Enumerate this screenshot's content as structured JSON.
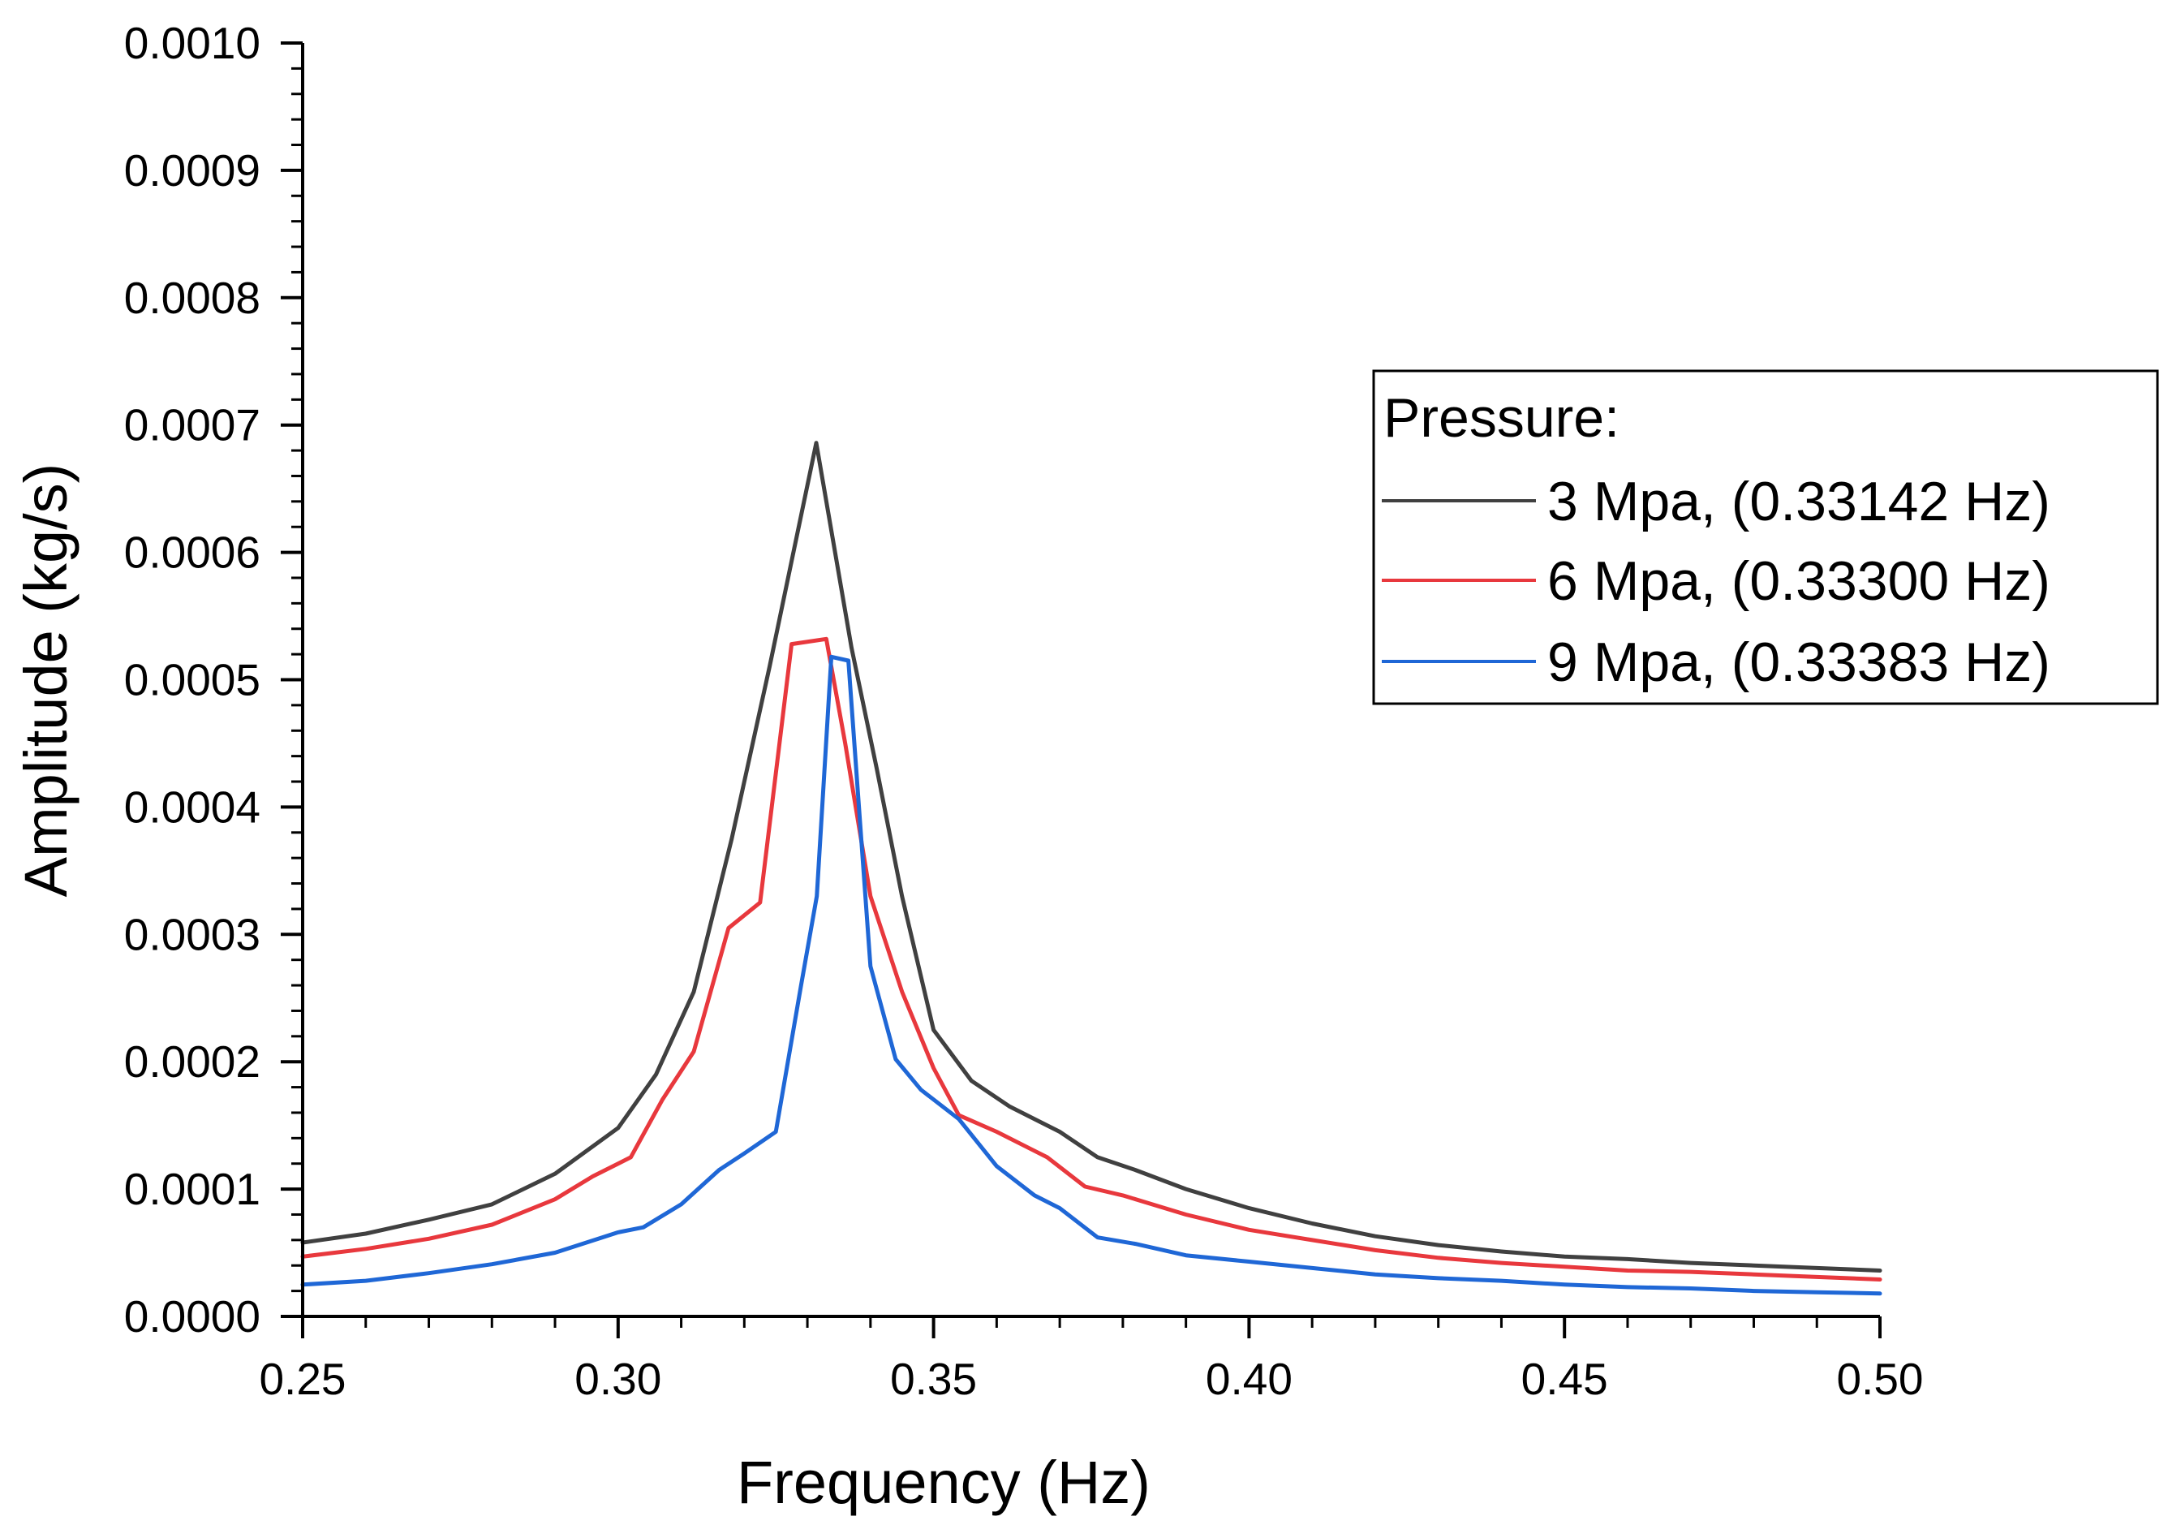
{
  "chart_data": {
    "type": "line",
    "title": "",
    "xlabel": "Frequency (Hz)",
    "ylabel": "Amplitude (kg/s)",
    "xlim": [
      0.25,
      0.5
    ],
    "ylim": [
      0.0,
      0.001
    ],
    "grid": false,
    "x_major_ticks": [
      0.25,
      0.3,
      0.35,
      0.4,
      0.45,
      0.5
    ],
    "x_tick_labels": [
      "0.25",
      "0.30",
      "0.35",
      "0.40",
      "0.45",
      "0.50"
    ],
    "y_major_ticks": [
      0.0,
      0.0001,
      0.0002,
      0.0003,
      0.0004,
      0.0005,
      0.0006,
      0.0007,
      0.0008,
      0.0009,
      0.001
    ],
    "y_tick_labels": [
      "0.0000",
      "0.0001",
      "0.0002",
      "0.0003",
      "0.0004",
      "0.0005",
      "0.0006",
      "0.0007",
      "0.0008",
      "0.0009",
      "0.0010"
    ],
    "legend": {
      "title": "Pressure:",
      "position": "right"
    },
    "series": [
      {
        "name": "3 Mpa, (0.33142 Hz)",
        "color": "#404040",
        "x": [
          0.25,
          0.26,
          0.27,
          0.28,
          0.29,
          0.3,
          0.306,
          0.312,
          0.318,
          0.324,
          0.3314,
          0.337,
          0.341,
          0.345,
          0.35,
          0.356,
          0.362,
          0.37,
          0.376,
          0.382,
          0.39,
          0.4,
          0.41,
          0.42,
          0.43,
          0.44,
          0.45,
          0.46,
          0.47,
          0.48,
          0.49,
          0.5
        ],
        "y": [
          5.8e-05,
          6.5e-05,
          7.6e-05,
          8.8e-05,
          0.000112,
          0.000148,
          0.00019,
          0.000255,
          0.000375,
          0.00051,
          0.000686,
          0.000525,
          0.00043,
          0.00033,
          0.000225,
          0.000185,
          0.000165,
          0.000145,
          0.000125,
          0.000115,
          0.0001,
          8.5e-05,
          7.3e-05,
          6.3e-05,
          5.6e-05,
          5.1e-05,
          4.7e-05,
          4.5e-05,
          4.2e-05,
          4e-05,
          3.8e-05,
          3.6e-05
        ]
      },
      {
        "name": "6 Mpa, (0.33300 Hz)",
        "color": "#e8383d",
        "x": [
          0.25,
          0.26,
          0.27,
          0.28,
          0.29,
          0.296,
          0.302,
          0.307,
          0.312,
          0.3175,
          0.3225,
          0.3275,
          0.333,
          0.336,
          0.34,
          0.345,
          0.35,
          0.354,
          0.36,
          0.368,
          0.374,
          0.38,
          0.39,
          0.4,
          0.41,
          0.42,
          0.43,
          0.44,
          0.45,
          0.46,
          0.47,
          0.48,
          0.49,
          0.5
        ],
        "y": [
          4.7e-05,
          5.3e-05,
          6.1e-05,
          7.2e-05,
          9.2e-05,
          0.00011,
          0.000125,
          0.00017,
          0.000208,
          0.000305,
          0.000325,
          0.000528,
          0.000532,
          0.00045,
          0.00033,
          0.000255,
          0.000195,
          0.000158,
          0.000145,
          0.000125,
          0.000102,
          9.5e-05,
          8e-05,
          6.8e-05,
          6e-05,
          5.2e-05,
          4.6e-05,
          4.2e-05,
          3.9e-05,
          3.6e-05,
          3.5e-05,
          3.3e-05,
          3.1e-05,
          2.9e-05
        ]
      },
      {
        "name": "9 Mpa, (0.33383 Hz)",
        "color": "#1f67d6",
        "x": [
          0.25,
          0.26,
          0.27,
          0.28,
          0.29,
          0.3,
          0.304,
          0.31,
          0.316,
          0.32,
          0.325,
          0.329,
          0.3315,
          0.3338,
          0.3365,
          0.34,
          0.344,
          0.348,
          0.354,
          0.36,
          0.366,
          0.37,
          0.376,
          0.382,
          0.39,
          0.4,
          0.41,
          0.42,
          0.43,
          0.44,
          0.45,
          0.46,
          0.47,
          0.48,
          0.49,
          0.5
        ],
        "y": [
          2.5e-05,
          2.8e-05,
          3.4e-05,
          4.1e-05,
          5e-05,
          6.6e-05,
          7e-05,
          8.8e-05,
          0.000115,
          0.000128,
          0.000145,
          0.00026,
          0.00033,
          0.000518,
          0.000515,
          0.000275,
          0.000202,
          0.000178,
          0.000155,
          0.000118,
          9.5e-05,
          8.5e-05,
          6.2e-05,
          5.7e-05,
          4.8e-05,
          4.3e-05,
          3.8e-05,
          3.3e-05,
          3e-05,
          2.8e-05,
          2.5e-05,
          2.3e-05,
          2.2e-05,
          2e-05,
          1.9e-05,
          1.8e-05
        ]
      }
    ]
  }
}
